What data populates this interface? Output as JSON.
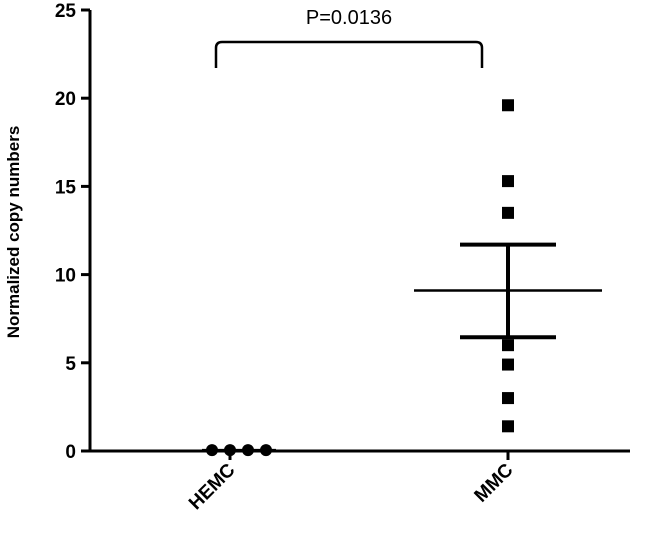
{
  "chart_data": {
    "type": "scatter",
    "title": "",
    "xlabel": "",
    "ylabel": "Normalized copy numbers",
    "ylim": [
      0,
      25
    ],
    "yticks": [
      0,
      5,
      10,
      15,
      20,
      25
    ],
    "yticklabels": [
      "0",
      "5",
      "10",
      "15",
      "20",
      "25"
    ],
    "categories": [
      "HEMC",
      "MMC"
    ],
    "series": [
      {
        "category": "HEMC",
        "marker": "circle",
        "values": [
          0.05,
          0.05,
          0.05,
          0.05
        ],
        "mean": 0.05
      },
      {
        "category": "MMC",
        "marker": "square",
        "values": [
          19.6,
          15.3,
          13.5,
          6.0,
          4.9,
          3.0,
          1.4
        ],
        "mean": 9.1,
        "error_upper": 11.7,
        "error_lower": 6.45
      }
    ],
    "annotation": {
      "text": "P=0.0136",
      "between": [
        "HEMC",
        "MMC"
      ]
    },
    "grid": false,
    "legend": "none"
  }
}
